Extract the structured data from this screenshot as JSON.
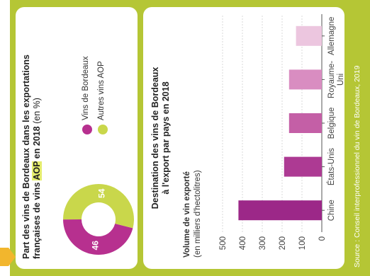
{
  "pie_panel": {
    "title_main": "Part des vins de Bordeaux dans les exportations françaises de vins ",
    "title_highlight": "AOP",
    "title_year": " en 2018",
    "title_unit": " (en %)",
    "legend": [
      {
        "label": "Vins de Bordeaux",
        "color": "#b7308f"
      },
      {
        "label": "Autres vins AOP",
        "color": "#c9d74b"
      }
    ]
  },
  "bar_panel": {
    "title_line1": "Destination des vins de Bordeaux",
    "title_line2": "à l'export par pays en 2018",
    "y_title": "Volume de vin exporté",
    "y_unit": "(en milliers d'hectolitres)"
  },
  "source": "Source : Conseil interprofessionnel du vin de Bordeaux, 2019",
  "chart_data": [
    {
      "type": "pie",
      "donut": true,
      "labels": [
        "Vins de Bordeaux",
        "Autres vins AOP"
      ],
      "values": [
        46,
        54
      ],
      "colors": [
        "#b7308f",
        "#c9d74b"
      ],
      "title": "Part des vins de Bordeaux dans les exportations françaises de vins AOP en 2018 (en %)"
    },
    {
      "type": "bar",
      "categories": [
        "Chine",
        "États-Unis",
        "Belgique",
        "Royaume-Uni",
        "Allemagne"
      ],
      "values": [
        420,
        190,
        165,
        165,
        130
      ],
      "colors": [
        "#9c2888",
        "#ad3a93",
        "#c45fa6",
        "#d98dc1",
        "#ecc6df"
      ],
      "title": "Destination des vins de Bordeaux à l'export par pays en 2018",
      "ylabel": "Volume de vin exporté (en milliers d'hectolitres)",
      "yticks": [
        0,
        100,
        200,
        300,
        400,
        500
      ],
      "ylim": [
        0,
        500
      ],
      "grid": true
    }
  ]
}
